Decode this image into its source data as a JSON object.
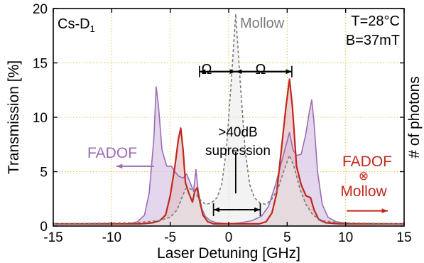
{
  "chart_data": {
    "type": "line",
    "xlabel": "Laser Detuning [GHz]",
    "ylabel": "Transmission [%]",
    "ylabel_right": "# of photons",
    "xlim": [
      -15,
      15
    ],
    "ylim": [
      0,
      20
    ],
    "x_ticks": [
      -15,
      -10,
      -5,
      0,
      5,
      10,
      15
    ],
    "y_ticks": [
      0,
      5,
      10,
      15,
      20
    ],
    "grid": true,
    "annotations": {
      "label_left": "Cs-D",
      "label_left_sub": "1",
      "temperature": "T=28°C",
      "field": "B=37mT",
      "mollow": "Mollow",
      "omega_left": "Ω",
      "omega_right": "Ω",
      "supp_line1": ">40dB",
      "supp_line2": "supression",
      "fadof_left": "FADOF",
      "fadof_right": "FADOF",
      "otimes": "⊗",
      "mollow_right": "Mollow"
    },
    "series": [
      {
        "name": "FADOF",
        "color": "#9b6bb5",
        "fill": "#d9c6e6",
        "points": [
          [
            -15,
            0.2
          ],
          [
            -8.5,
            0.2
          ],
          [
            -7.8,
            0.4
          ],
          [
            -7.2,
            1.0
          ],
          [
            -6.8,
            3.0
          ],
          [
            -6.4,
            8.0
          ],
          [
            -6.2,
            12.8
          ],
          [
            -6.0,
            11.0
          ],
          [
            -5.7,
            7.0
          ],
          [
            -5.3,
            5.5
          ],
          [
            -4.9,
            5.5
          ],
          [
            -4.6,
            5.0
          ],
          [
            -4.3,
            4.6
          ],
          [
            -3.9,
            4.4
          ],
          [
            -3.6,
            4.8
          ],
          [
            -3.3,
            4.0
          ],
          [
            -3.0,
            3.2
          ],
          [
            -2.8,
            5.2
          ],
          [
            -2.6,
            3.2
          ],
          [
            -2.3,
            1.6
          ],
          [
            -2.0,
            0.9
          ],
          [
            -1.6,
            0.5
          ],
          [
            -1.0,
            0.3
          ],
          [
            0,
            0.2
          ],
          [
            1.0,
            0.3
          ],
          [
            2.0,
            0.5
          ],
          [
            2.8,
            0.9
          ],
          [
            3.4,
            1.8
          ],
          [
            4.0,
            3.8
          ],
          [
            4.6,
            6.2
          ],
          [
            5.0,
            7.8
          ],
          [
            5.2,
            8.6
          ],
          [
            5.5,
            7.0
          ],
          [
            5.8,
            6.5
          ],
          [
            6.2,
            6.6
          ],
          [
            6.6,
            8.5
          ],
          [
            6.9,
            10.5
          ],
          [
            7.1,
            11.6
          ],
          [
            7.3,
            9.5
          ],
          [
            7.6,
            5.0
          ],
          [
            8.0,
            2.0
          ],
          [
            8.5,
            0.8
          ],
          [
            9.2,
            0.4
          ],
          [
            10.5,
            0.2
          ],
          [
            15,
            0.2
          ]
        ]
      },
      {
        "name": "FADOF ⊗ Mollow",
        "color": "#c0281c",
        "fill": "#e3c0c7",
        "points": [
          [
            -15,
            0.2
          ],
          [
            -7.5,
            0.2
          ],
          [
            -6.5,
            0.3
          ],
          [
            -5.9,
            0.5
          ],
          [
            -5.4,
            1.0
          ],
          [
            -5.0,
            2.8
          ],
          [
            -4.6,
            5.5
          ],
          [
            -4.3,
            8.0
          ],
          [
            -4.1,
            9.0
          ],
          [
            -3.9,
            7.0
          ],
          [
            -3.7,
            4.0
          ],
          [
            -3.4,
            3.0
          ],
          [
            -3.1,
            2.2
          ],
          [
            -2.9,
            3.2
          ],
          [
            -2.7,
            3.5
          ],
          [
            -2.5,
            2.4
          ],
          [
            -2.2,
            1.0
          ],
          [
            -1.8,
            0.4
          ],
          [
            -1.3,
            0.2
          ],
          [
            2.6,
            0.2
          ],
          [
            3.2,
            0.4
          ],
          [
            3.7,
            1.2
          ],
          [
            4.1,
            3.0
          ],
          [
            4.5,
            7.0
          ],
          [
            4.9,
            11.0
          ],
          [
            5.2,
            13.5
          ],
          [
            5.45,
            11.0
          ],
          [
            5.8,
            5.5
          ],
          [
            6.2,
            3.8
          ],
          [
            6.6,
            2.8
          ],
          [
            7.0,
            2.6
          ],
          [
            7.3,
            1.5
          ],
          [
            7.7,
            0.6
          ],
          [
            8.3,
            0.3
          ],
          [
            9.5,
            0.2
          ],
          [
            15,
            0.2
          ]
        ]
      },
      {
        "name": "Mollow",
        "color": "#7a7a7a",
        "fill": "#e9e9e9",
        "points": [
          [
            -15,
            0.2
          ],
          [
            -8,
            0.3
          ],
          [
            -6,
            0.5
          ],
          [
            -5.0,
            0.8
          ],
          [
            -4.4,
            1.5
          ],
          [
            -4.0,
            2.6
          ],
          [
            -3.7,
            3.4
          ],
          [
            -3.4,
            3.5
          ],
          [
            -3.0,
            3.2
          ],
          [
            -2.5,
            2.5
          ],
          [
            -2.0,
            2.0
          ],
          [
            -1.5,
            2.1
          ],
          [
            -1.0,
            2.6
          ],
          [
            -0.6,
            3.8
          ],
          [
            -0.2,
            7.0
          ],
          [
            0.2,
            13.0
          ],
          [
            0.6,
            19.5
          ],
          [
            1.0,
            13.0
          ],
          [
            1.4,
            7.0
          ],
          [
            1.8,
            3.8
          ],
          [
            2.2,
            2.6
          ],
          [
            2.7,
            2.1
          ],
          [
            3.2,
            2.0
          ],
          [
            3.7,
            2.5
          ],
          [
            4.2,
            3.4
          ],
          [
            4.7,
            5.0
          ],
          [
            5.2,
            6.5
          ],
          [
            5.6,
            5.4
          ],
          [
            6.1,
            3.4
          ],
          [
            6.6,
            2.0
          ],
          [
            7.2,
            1.0
          ],
          [
            8,
            0.5
          ],
          [
            9.5,
            0.3
          ],
          [
            15,
            0.2
          ]
        ]
      }
    ],
    "markers": {
      "omega_y": 14.2,
      "omega_x": [
        -2.5,
        0.6,
        5.4
      ],
      "supp_x": [
        -1.3,
        2.7
      ],
      "supp_y": 1.5,
      "supp_bar_x": 0.6,
      "supp_bar_y": [
        3.0,
        6.8
      ],
      "fadof_arrow": [
        [
          -6.4,
          5.5
        ],
        [
          -9.6,
          5.5
        ]
      ],
      "fmollow_arrow": [
        [
          10.1,
          1.4
        ],
        [
          13.6,
          1.4
        ]
      ]
    }
  }
}
